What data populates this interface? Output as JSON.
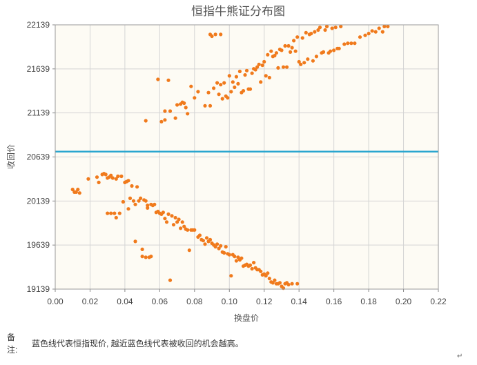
{
  "chart_data": {
    "type": "scatter",
    "title": "恒指牛熊证分布图",
    "xlabel": "换盘价",
    "ylabel": "收回价",
    "xlim": [
      0,
      0.22
    ],
    "ylim": [
      19139,
      22139
    ],
    "x_ticks": [
      "0.00",
      "0.02",
      "0.04",
      "0.06",
      "0.08",
      "0.10",
      "0.12",
      "0.14",
      "0.16",
      "0.18",
      "0.20",
      "0.22"
    ],
    "y_ticks": [
      "19139",
      "19639",
      "20139",
      "20639",
      "21139",
      "21639",
      "22139"
    ],
    "grid": true,
    "reference_line": {
      "y": 20700,
      "color": "#2aa6cf"
    },
    "point_color": "#f07a1c",
    "series": [
      {
        "points": [
          [
            0.052,
            21050
          ],
          [
            0.059,
            21520
          ],
          [
            0.061,
            21040
          ],
          [
            0.063,
            21060
          ],
          [
            0.063,
            21160
          ],
          [
            0.065,
            21510
          ],
          [
            0.066,
            21160
          ],
          [
            0.069,
            21080
          ],
          [
            0.07,
            21230
          ],
          [
            0.072,
            21240
          ],
          [
            0.073,
            21260
          ],
          [
            0.074,
            21250
          ],
          [
            0.075,
            21200
          ],
          [
            0.076,
            21130
          ],
          [
            0.078,
            21440
          ],
          [
            0.08,
            21310
          ],
          [
            0.082,
            21380
          ],
          [
            0.086,
            21220
          ],
          [
            0.088,
            21370
          ],
          [
            0.089,
            21220
          ],
          [
            0.089,
            22030
          ],
          [
            0.09,
            22010
          ],
          [
            0.091,
            21420
          ],
          [
            0.092,
            22030
          ],
          [
            0.093,
            21480
          ],
          [
            0.094,
            21350
          ],
          [
            0.095,
            21460
          ],
          [
            0.095,
            22030
          ],
          [
            0.096,
            21300
          ],
          [
            0.097,
            21480
          ],
          [
            0.098,
            21330
          ],
          [
            0.099,
            21310
          ],
          [
            0.1,
            21560
          ],
          [
            0.101,
            21380
          ],
          [
            0.102,
            21490
          ],
          [
            0.103,
            21430
          ],
          [
            0.104,
            21550
          ],
          [
            0.105,
            21470
          ],
          [
            0.106,
            21610
          ],
          [
            0.107,
            21370
          ],
          [
            0.108,
            21390
          ],
          [
            0.109,
            21570
          ],
          [
            0.11,
            21620
          ],
          [
            0.111,
            21410
          ],
          [
            0.112,
            21410
          ],
          [
            0.113,
            21590
          ],
          [
            0.114,
            21640
          ],
          [
            0.115,
            21630
          ],
          [
            0.116,
            21660
          ],
          [
            0.117,
            21690
          ],
          [
            0.118,
            21490
          ],
          [
            0.119,
            21680
          ],
          [
            0.12,
            21720
          ],
          [
            0.121,
            21560
          ],
          [
            0.122,
            21800
          ],
          [
            0.123,
            21540
          ],
          [
            0.124,
            21840
          ],
          [
            0.125,
            21780
          ],
          [
            0.126,
            21790
          ],
          [
            0.127,
            21820
          ],
          [
            0.128,
            21650
          ],
          [
            0.129,
            21860
          ],
          [
            0.13,
            21850
          ],
          [
            0.131,
            21660
          ],
          [
            0.132,
            21900
          ],
          [
            0.133,
            21660
          ],
          [
            0.134,
            21900
          ],
          [
            0.135,
            21830
          ],
          [
            0.136,
            21880
          ],
          [
            0.137,
            21960
          ],
          [
            0.138,
            21840
          ],
          [
            0.139,
            22000
          ],
          [
            0.14,
            21720
          ],
          [
            0.141,
            21690
          ],
          [
            0.142,
            21990
          ],
          [
            0.143,
            21710
          ],
          [
            0.144,
            22050
          ],
          [
            0.145,
            21750
          ],
          [
            0.146,
            22030
          ],
          [
            0.147,
            22040
          ],
          [
            0.148,
            21730
          ],
          [
            0.149,
            22060
          ],
          [
            0.15,
            21780
          ],
          [
            0.151,
            22080
          ],
          [
            0.152,
            22110
          ],
          [
            0.153,
            21820
          ],
          [
            0.154,
            21830
          ],
          [
            0.155,
            22080
          ],
          [
            0.156,
            22120
          ],
          [
            0.157,
            21820
          ],
          [
            0.158,
            21840
          ],
          [
            0.159,
            22100
          ],
          [
            0.16,
            21850
          ],
          [
            0.161,
            22110
          ],
          [
            0.162,
            21870
          ],
          [
            0.163,
            21870
          ],
          [
            0.164,
            22120
          ],
          [
            0.166,
            21920
          ],
          [
            0.168,
            21930
          ],
          [
            0.17,
            21930
          ],
          [
            0.172,
            21930
          ],
          [
            0.175,
            22000
          ],
          [
            0.178,
            22020
          ],
          [
            0.18,
            22040
          ],
          [
            0.182,
            22070
          ],
          [
            0.184,
            22060
          ],
          [
            0.186,
            22100
          ],
          [
            0.188,
            22060
          ],
          [
            0.189,
            22120
          ],
          [
            0.191,
            22120
          ],
          [
            0.01,
            20270
          ],
          [
            0.011,
            20240
          ],
          [
            0.012,
            20240
          ],
          [
            0.013,
            20270
          ],
          [
            0.014,
            20230
          ],
          [
            0.019,
            20390
          ],
          [
            0.024,
            20410
          ],
          [
            0.025,
            20350
          ],
          [
            0.027,
            20440
          ],
          [
            0.028,
            20450
          ],
          [
            0.029,
            20440
          ],
          [
            0.03,
            20400
          ],
          [
            0.03,
            20000
          ],
          [
            0.031,
            20410
          ],
          [
            0.032,
            20000
          ],
          [
            0.032,
            20430
          ],
          [
            0.033,
            20400
          ],
          [
            0.034,
            20000
          ],
          [
            0.035,
            20390
          ],
          [
            0.035,
            19950
          ],
          [
            0.036,
            20420
          ],
          [
            0.037,
            20000
          ],
          [
            0.038,
            20420
          ],
          [
            0.039,
            20130
          ],
          [
            0.04,
            20350
          ],
          [
            0.041,
            20360
          ],
          [
            0.042,
            20370
          ],
          [
            0.042,
            20050
          ],
          [
            0.043,
            20170
          ],
          [
            0.044,
            20310
          ],
          [
            0.045,
            20140
          ],
          [
            0.046,
            20100
          ],
          [
            0.046,
            19680
          ],
          [
            0.047,
            20300
          ],
          [
            0.048,
            20140
          ],
          [
            0.049,
            20170
          ],
          [
            0.05,
            19590
          ],
          [
            0.05,
            19510
          ],
          [
            0.051,
            20150
          ],
          [
            0.052,
            20140
          ],
          [
            0.052,
            19500
          ],
          [
            0.053,
            20090
          ],
          [
            0.053,
            20060
          ],
          [
            0.054,
            19500
          ],
          [
            0.055,
            20100
          ],
          [
            0.055,
            19510
          ],
          [
            0.056,
            20090
          ],
          [
            0.057,
            20100
          ],
          [
            0.058,
            20010
          ],
          [
            0.059,
            20020
          ],
          [
            0.06,
            20000
          ],
          [
            0.061,
            19990
          ],
          [
            0.062,
            20010
          ],
          [
            0.063,
            19940
          ],
          [
            0.064,
            19900
          ],
          [
            0.065,
            19990
          ],
          [
            0.066,
            19240
          ],
          [
            0.067,
            19970
          ],
          [
            0.068,
            19870
          ],
          [
            0.069,
            19950
          ],
          [
            0.07,
            19900
          ],
          [
            0.071,
            19930
          ],
          [
            0.072,
            19830
          ],
          [
            0.073,
            19900
          ],
          [
            0.074,
            19850
          ],
          [
            0.075,
            19820
          ],
          [
            0.076,
            19810
          ],
          [
            0.077,
            19580
          ],
          [
            0.078,
            19810
          ],
          [
            0.079,
            19810
          ],
          [
            0.08,
            19810
          ],
          [
            0.082,
            19730
          ],
          [
            0.083,
            19750
          ],
          [
            0.084,
            19700
          ],
          [
            0.085,
            19690
          ],
          [
            0.086,
            19650
          ],
          [
            0.087,
            19720
          ],
          [
            0.088,
            19680
          ],
          [
            0.089,
            19700
          ],
          [
            0.09,
            19660
          ],
          [
            0.091,
            19640
          ],
          [
            0.092,
            19620
          ],
          [
            0.093,
            19650
          ],
          [
            0.094,
            19600
          ],
          [
            0.095,
            19630
          ],
          [
            0.096,
            19560
          ],
          [
            0.097,
            19550
          ],
          [
            0.098,
            19620
          ],
          [
            0.099,
            19540
          ],
          [
            0.1,
            19530
          ],
          [
            0.101,
            19290
          ],
          [
            0.102,
            19530
          ],
          [
            0.103,
            19510
          ],
          [
            0.104,
            19460
          ],
          [
            0.105,
            19500
          ],
          [
            0.106,
            19470
          ],
          [
            0.107,
            19490
          ],
          [
            0.108,
            19400
          ],
          [
            0.109,
            19410
          ],
          [
            0.11,
            19420
          ],
          [
            0.111,
            19400
          ],
          [
            0.112,
            19410
          ],
          [
            0.113,
            19370
          ],
          [
            0.114,
            19440
          ],
          [
            0.115,
            19380
          ],
          [
            0.116,
            19360
          ],
          [
            0.117,
            19360
          ],
          [
            0.118,
            19340
          ],
          [
            0.119,
            19300
          ],
          [
            0.12,
            19310
          ],
          [
            0.121,
            19290
          ],
          [
            0.122,
            19320
          ],
          [
            0.123,
            19260
          ],
          [
            0.124,
            19220
          ],
          [
            0.125,
            19210
          ],
          [
            0.126,
            19240
          ],
          [
            0.127,
            19200
          ],
          [
            0.128,
            19200
          ],
          [
            0.129,
            19210
          ],
          [
            0.13,
            19170
          ],
          [
            0.131,
            19150
          ],
          [
            0.132,
            19200
          ],
          [
            0.133,
            19210
          ],
          [
            0.134,
            19190
          ],
          [
            0.136,
            19200
          ],
          [
            0.139,
            19200
          ]
        ]
      }
    ]
  },
  "note": {
    "label_line1": "备",
    "label_line2": "注:",
    "text": "蓝色线代表恒指现价, 越近蓝色线代表被收回的机会越高。"
  },
  "return_mark": "↵"
}
